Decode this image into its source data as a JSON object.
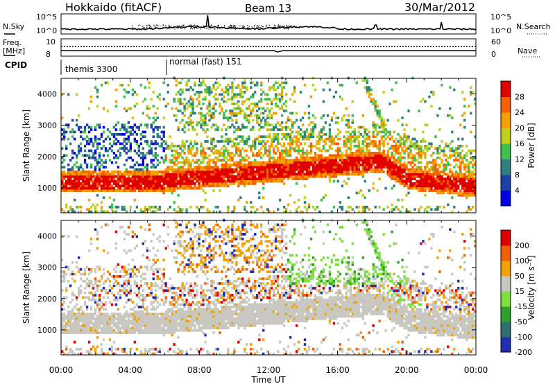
{
  "header": {
    "station": "Hokkaido (fitACF)",
    "beam": "Beam 13",
    "date": "30/Mar/2012"
  },
  "noise_panel": {
    "left_label": "N.Sky",
    "right_label": "N.Search",
    "left_ticks": [
      "10^5",
      "10^0"
    ],
    "right_ticks": [
      "10^5",
      "10^0"
    ]
  },
  "freq_panel": {
    "left_label_1": "Freq.",
    "left_label_2": "[MHz]",
    "left_ticks": [
      "10",
      "8"
    ],
    "right_label": "Nave",
    "right_ticks": [
      "60",
      "0"
    ]
  },
  "cpid_panel": {
    "label": "CPID",
    "modes": [
      {
        "name": "themis 3300",
        "start_hour": 0
      },
      {
        "name": "normal (fast) 151",
        "start_hour": 6
      }
    ]
  },
  "chart_data": [
    {
      "type": "heatmap",
      "ylabel": "Slant Range [km]",
      "xlabel": "",
      "y_ticks": [
        "1000",
        "2000",
        "3000",
        "4000"
      ],
      "ylim": [
        200,
        4500
      ],
      "colorbar": {
        "title": "Power [dB]",
        "ticks": [
          "4",
          "8",
          "12",
          "16",
          "20",
          "24",
          "28"
        ],
        "colors": [
          "#0000ee",
          "#1f3fa8",
          "#2f7f7f",
          "#3fbf4f",
          "#bfd020",
          "#f5a000",
          "#f56000",
          "#e00000"
        ]
      }
    },
    {
      "type": "heatmap",
      "ylabel": "Slant Range [km]",
      "xlabel": "Time UT",
      "y_ticks": [
        "1000",
        "2000",
        "3000",
        "4000"
      ],
      "ylim": [
        200,
        4500
      ],
      "x_ticks": [
        "00:00",
        "04:00",
        "08:00",
        "12:00",
        "16:00",
        "20:00",
        "00:00"
      ],
      "colorbar": {
        "title": "Velocity [m s⁻¹]",
        "ticks": [
          "200",
          "100",
          "50",
          "15",
          "-15",
          "-50",
          "-100",
          "-200"
        ],
        "colors": [
          "#1f2fb0",
          "#2f6f6f",
          "#2f9f2f",
          "#7fdf3f",
          "#c8c8c0",
          "#f0a000",
          "#f06000",
          "#e00000"
        ]
      }
    }
  ]
}
